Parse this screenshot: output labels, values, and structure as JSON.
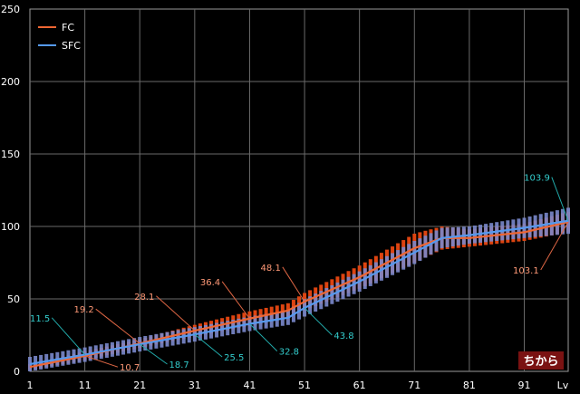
{
  "chart_data": {
    "type": "line",
    "x_label": "Lv",
    "x_ticks": [
      1,
      11,
      21,
      31,
      41,
      51,
      61,
      71,
      81,
      91
    ],
    "y_ticks": [
      0,
      50,
      100,
      150,
      200,
      250
    ],
    "xlim": [
      1,
      99
    ],
    "ylim": [
      0,
      250
    ],
    "grid": true,
    "legend_position": "top-left",
    "badge": "ちから",
    "series": [
      {
        "name": "FC",
        "color": "#ee6633",
        "range_color": "#dd4411",
        "x": [
          1,
          11,
          21,
          31,
          41,
          48,
          51,
          61,
          71,
          76,
          81,
          91,
          99
        ],
        "y": [
          3,
          10.7,
          19.2,
          28.1,
          36.4,
          42,
          48.1,
          65,
          85,
          92,
          92,
          96,
          103.1
        ],
        "range_halfwidth": [
          2,
          3,
          3,
          4,
          5,
          5,
          6,
          8,
          10,
          8,
          6,
          6,
          7
        ]
      },
      {
        "name": "SFC",
        "color": "#5599ee",
        "range_color": "#7a88cc",
        "x": [
          1,
          11,
          21,
          31,
          41,
          48,
          51,
          61,
          71,
          76,
          81,
          91,
          99
        ],
        "y": [
          5,
          11.5,
          18.7,
          25.5,
          32.8,
          37,
          43.8,
          62,
          82,
          92,
          94,
          99,
          103.9
        ],
        "range_halfwidth": [
          5,
          5,
          5,
          5,
          5,
          5,
          6,
          7,
          8,
          7,
          6,
          7,
          9
        ]
      }
    ],
    "annotations": [
      {
        "series": "FC",
        "text": "10.7",
        "x": 11,
        "y": 10.7,
        "lx": 17,
        "ly": 3,
        "anchor": "start"
      },
      {
        "series": "FC",
        "text": "19.2",
        "x": 21,
        "y": 19.2,
        "lx": 13,
        "ly": 43,
        "anchor": "end"
      },
      {
        "series": "FC",
        "text": "28.1",
        "x": 31,
        "y": 28.1,
        "lx": 24,
        "ly": 52,
        "anchor": "end"
      },
      {
        "series": "FC",
        "text": "36.4",
        "x": 41,
        "y": 36.4,
        "lx": 36,
        "ly": 62,
        "anchor": "end"
      },
      {
        "series": "FC",
        "text": "48.1",
        "x": 51,
        "y": 48.1,
        "lx": 47,
        "ly": 72,
        "anchor": "end"
      },
      {
        "series": "FC",
        "text": "103.1",
        "x": 99,
        "y": 103.1,
        "lx": 94,
        "ly": 70,
        "anchor": "end"
      },
      {
        "series": "SFC",
        "text": "11.5",
        "x": 11,
        "y": 11.5,
        "lx": 5,
        "ly": 37,
        "anchor": "end"
      },
      {
        "series": "SFC",
        "text": "18.7",
        "x": 21,
        "y": 18.7,
        "lx": 26,
        "ly": 5,
        "anchor": "start"
      },
      {
        "series": "SFC",
        "text": "25.5",
        "x": 31,
        "y": 25.5,
        "lx": 36,
        "ly": 10,
        "anchor": "start"
      },
      {
        "series": "SFC",
        "text": "32.8",
        "x": 41,
        "y": 32.8,
        "lx": 46,
        "ly": 14,
        "anchor": "start"
      },
      {
        "series": "SFC",
        "text": "43.8",
        "x": 51,
        "y": 43.8,
        "lx": 56,
        "ly": 25,
        "anchor": "start"
      },
      {
        "series": "SFC",
        "text": "103.9",
        "x": 99,
        "y": 103.9,
        "lx": 96,
        "ly": 134,
        "anchor": "end"
      }
    ]
  }
}
